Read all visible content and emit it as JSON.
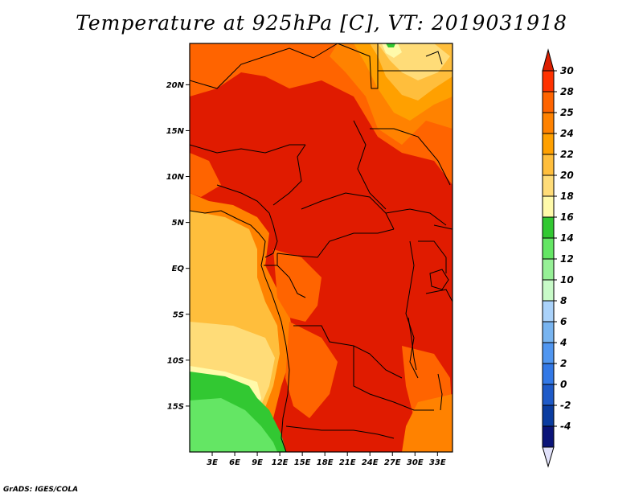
{
  "title": "Temperature at 925hPa [C], VT: 2019031918",
  "credit": "GrADS: IGES/COLA",
  "map": {
    "lat_ticks": [
      "20N",
      "15N",
      "10N",
      "5N",
      "EQ",
      "5S",
      "10S",
      "15S"
    ],
    "lat_values": [
      20,
      15,
      10,
      5,
      0,
      -5,
      -10,
      -15
    ],
    "lon_ticks": [
      "3E",
      "6E",
      "9E",
      "12E",
      "15E",
      "18E",
      "21E",
      "24E",
      "27E",
      "30E",
      "33E"
    ],
    "lon_values": [
      3,
      6,
      9,
      12,
      15,
      18,
      21,
      24,
      27,
      30,
      33
    ],
    "lon_range": [
      0,
      35
    ],
    "lat_range": [
      -20,
      24.5
    ]
  },
  "colorbar": {
    "levels": [
      "30",
      "28",
      "25",
      "24",
      "22",
      "20",
      "18",
      "16",
      "14",
      "12",
      "10",
      "8",
      "6",
      "4",
      "2",
      "0",
      "-2",
      "-4"
    ],
    "colors": [
      "#ff3200",
      "#ff6400",
      "#ff8200",
      "#ffa000",
      "#ffbe3c",
      "#ffdc78",
      "#fffaaa",
      "#32c832",
      "#64e664",
      "#96f096",
      "#c8fac8",
      "#aad2fa",
      "#78b4f0",
      "#5096f0",
      "#3278e6",
      "#1e5ac8",
      "#0a3ca0",
      "#0a1478"
    ],
    "top_arrow_color": "#dc1e00",
    "bottom_arrow_color": "#e1e1fa"
  },
  "field_colors": {
    "hot": "#e01b00",
    "very_warm": "#ff3200",
    "warm": "#ff6400",
    "mild": "#ff8200",
    "cool_orange": "#ffbe3c",
    "pale": "#ffdc78",
    "light_green": "#64e664",
    "green": "#32c832"
  }
}
